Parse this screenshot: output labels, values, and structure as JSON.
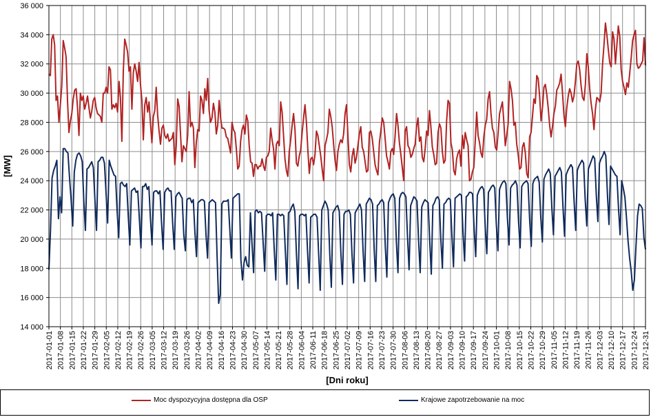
{
  "chart_data": {
    "type": "line",
    "xlabel": "[Dni roku]",
    "ylabel": "[MW]",
    "ylim": [
      14000,
      36000
    ],
    "y_ticks": [
      14000,
      16000,
      18000,
      20000,
      22000,
      24000,
      26000,
      28000,
      30000,
      32000,
      34000,
      36000
    ],
    "y_tick_labels": [
      "14 000",
      "16 000",
      "18 000",
      "20 000",
      "22 000",
      "24 000",
      "26 000",
      "28 000",
      "30 000",
      "32 000",
      "34 000",
      "36 000"
    ],
    "x_range": [
      "2017-01-01",
      "2017-12-31"
    ],
    "x_tick_labels": [
      "2017-01-01",
      "2017-01-08",
      "2017-01-15",
      "2017-01-22",
      "2017-01-29",
      "2017-02-05",
      "2017-02-12",
      "2017-02-19",
      "2017-02-26",
      "2017-03-05",
      "2017-03-12",
      "2017-03-19",
      "2017-03-26",
      "2017-04-02",
      "2017-04-09",
      "2017-04-16",
      "2017-04-23",
      "2017-04-30",
      "2017-05-07",
      "2017-05-14",
      "2017-05-21",
      "2017-05-28",
      "2017-06-04",
      "2017-06-11",
      "2017-06-18",
      "2017-06-25",
      "2017-07-02",
      "2017-07-09",
      "2017-07-16",
      "2017-07-23",
      "2017-07-30",
      "2017-08-06",
      "2017-08-13",
      "2017-08-20",
      "2017-08-27",
      "2017-09-03",
      "2017-09-10",
      "2017-09-17",
      "2017-09-24",
      "2017-10-01",
      "2017-10-08",
      "2017-10-15",
      "2017-10-22",
      "2017-10-29",
      "2017-11-05",
      "2017-11-12",
      "2017-11-19",
      "2017-11-26",
      "2017-12-03",
      "2017-12-10",
      "2017-12-17",
      "2017-12-24",
      "2017-12-31"
    ],
    "grid": true,
    "legend_position": "bottom",
    "series": [
      {
        "name": "Moc dyspozycyjna dostępna dla OSP",
        "color": "#b22222",
        "values": [
          31300,
          31200,
          33700,
          34000,
          33300,
          29500,
          29800,
          28000,
          29200,
          30500,
          33600,
          33100,
          32500,
          29500,
          27300,
          28100,
          28600,
          29600,
          30200,
          30300,
          29000,
          27100,
          30000,
          29500,
          29800,
          28900,
          29300,
          29800,
          29000,
          28300,
          28800,
          29500,
          29700,
          29000,
          28600,
          28500,
          28400,
          28000,
          30000,
          30000,
          30400,
          30000,
          31800,
          31600,
          28900,
          29200,
          29000,
          29300,
          28700,
          30800,
          29700,
          26700,
          31500,
          33700,
          33300,
          32800,
          31500,
          31800,
          28900,
          31400,
          32000,
          31500,
          30800,
          32100,
          30600,
          29500,
          26800,
          29200,
          29700,
          28700,
          29400,
          27900,
          26600,
          28400,
          28800,
          30400,
          28500,
          27400,
          26500,
          27600,
          27800,
          27100,
          26900,
          27200,
          26700,
          26800,
          26900,
          27300,
          25100,
          26400,
          29600,
          29100,
          27200,
          25300,
          26400,
          26200,
          26000,
          27100,
          30100,
          27700,
          28000,
          27600,
          24900,
          26600,
          27500,
          27400,
          29800,
          29500,
          28600,
          30300,
          29500,
          31000,
          28800,
          28000,
          28300,
          29300,
          28700,
          27200,
          27800,
          29500,
          28300,
          27600,
          27600,
          27500,
          27000,
          26900,
          26400,
          25900,
          28000,
          27500,
          27300,
          26200,
          24800,
          25000,
          26700,
          27500,
          27800,
          27200,
          28500,
          28100,
          26400,
          25300,
          25200,
          24300,
          25100,
          25100,
          24800,
          25000,
          25000,
          25500,
          25000,
          24700,
          25600,
          25700,
          26000,
          27600,
          26800,
          26200,
          24800,
          26500,
          26700,
          26400,
          29400,
          28700,
          27100,
          25500,
          24700,
          24300,
          26000,
          26800,
          27800,
          28600,
          27500,
          25200,
          25000,
          25700,
          26100,
          27300,
          28300,
          29200,
          28000,
          26100,
          24500,
          25500,
          25600,
          25100,
          25800,
          27400,
          27100,
          26400,
          25700,
          24800,
          24000,
          26400,
          26800,
          27300,
          28900,
          28400,
          27700,
          26500,
          25400,
          24700,
          26000,
          26500,
          26800,
          26600,
          27200,
          28600,
          29200,
          27100,
          25100,
          24600,
          25700,
          26200,
          25200,
          25600,
          26400,
          27200,
          27700,
          26300,
          26000,
          25300,
          24600,
          24700,
          27300,
          27400,
          26900,
          26000,
          25100,
          24700,
          24400,
          26600,
          27400,
          28300,
          28000,
          26900,
          25700,
          25300,
          24800,
          26000,
          26200,
          25800,
          27100,
          28600,
          27800,
          26600,
          25800,
          24900,
          24000,
          27400,
          27700,
          26400,
          26200,
          25600,
          25800,
          26200,
          26500,
          27700,
          28300,
          26700,
          27000,
          25600,
          25300,
          26200,
          27400,
          27100,
          28800,
          27700,
          26300,
          25800,
          25100,
          25200,
          27300,
          27900,
          27600,
          26000,
          25200,
          25400,
          28100,
          29500,
          29300,
          26600,
          26100,
          24700,
          24400,
          25500,
          25900,
          26100,
          25000,
          27100,
          26200,
          27300,
          26800,
          26400,
          24000,
          24100,
          24600,
          24900,
          26700,
          28700,
          27100,
          26600,
          25900,
          25600,
          27000,
          27800,
          28200,
          29600,
          30100,
          28600,
          27600,
          27300,
          26300,
          26100,
          27300,
          28600,
          29000,
          29400,
          28000,
          26400,
          27100,
          27900,
          30800,
          30300,
          29500,
          27800,
          28000,
          26500,
          25800,
          24800,
          24900,
          26300,
          26600,
          25900,
          24500,
          24200,
          27000,
          27300,
          28400,
          29600,
          29300,
          31200,
          31000,
          29800,
          28100,
          29000,
          30400,
          30600,
          29900,
          29000,
          27800,
          27000,
          27700,
          28600,
          29100,
          30200,
          30400,
          30700,
          31300,
          30000,
          28500,
          27700,
          29000,
          29800,
          30300,
          30000,
          29400,
          29800,
          30800,
          32000,
          32200,
          31600,
          30500,
          29700,
          29500,
          30600,
          32700,
          31800,
          30300,
          29300,
          28600,
          27500,
          28900,
          29700,
          29600,
          29400,
          30000,
          32000,
          33300,
          34800,
          34000,
          33000,
          32100,
          31800,
          34200,
          33700,
          32000,
          33300,
          34600,
          33900,
          31600,
          30800,
          30400,
          29900,
          30700,
          30400,
          31400,
          32400,
          33600,
          34000,
          34300,
          32000,
          31700,
          31800,
          32000,
          32200,
          33800,
          31900
        ]
      },
      {
        "name": "Krajowe zapotrzebowanie na moc",
        "color": "#0f2a5c",
        "values": [
          17900,
          20600,
          24200,
          24700,
          25000,
          25400,
          21400,
          22900,
          21800,
          26200,
          26200,
          26000,
          25900,
          24200,
          22700,
          20900,
          24600,
          25400,
          25800,
          25900,
          25700,
          25300,
          22600,
          20600,
          24800,
          24900,
          25100,
          25300,
          24900,
          22700,
          20600,
          25300,
          25400,
          25600,
          25600,
          25200,
          23200,
          21100,
          25400,
          25000,
          24700,
          24400,
          24300,
          21900,
          20100,
          23800,
          23900,
          23700,
          23600,
          23800,
          21600,
          19600,
          23300,
          23400,
          23500,
          23200,
          23300,
          21400,
          19400,
          23600,
          23600,
          23800,
          23400,
          23600,
          21400,
          19600,
          23200,
          23300,
          23300,
          23100,
          23300,
          21100,
          19300,
          23200,
          23400,
          23500,
          23300,
          23300,
          21100,
          19300,
          22900,
          23100,
          23200,
          23000,
          22800,
          20300,
          19200,
          22700,
          22800,
          22800,
          22500,
          22700,
          20500,
          18800,
          22500,
          22600,
          22700,
          22700,
          22600,
          20300,
          18700,
          22500,
          22600,
          22700,
          22600,
          22500,
          18800,
          15600,
          16200,
          22400,
          22600,
          22600,
          22600,
          22700,
          20700,
          18700,
          22800,
          22900,
          23000,
          23100,
          23100,
          18600,
          17200,
          18400,
          18800,
          18200,
          18100,
          21800,
          19700,
          17700,
          21900,
          22000,
          21800,
          21900,
          21800,
          19800,
          17800,
          21600,
          21700,
          21700,
          21600,
          21800,
          19300,
          17200,
          21700,
          21700,
          21600,
          21700,
          21600,
          19200,
          16900,
          21800,
          21900,
          22200,
          22400,
          21900,
          19000,
          16600,
          21600,
          21700,
          21700,
          21600,
          21700,
          19200,
          17000,
          21500,
          21600,
          21700,
          21700,
          21500,
          19000,
          16500,
          22000,
          22300,
          22600,
          22400,
          22000,
          19000,
          16700,
          21800,
          22000,
          22200,
          22300,
          21900,
          19100,
          16900,
          21700,
          21900,
          21900,
          22000,
          21700,
          19000,
          17000,
          21800,
          22000,
          22200,
          22400,
          22000,
          19200,
          17100,
          22400,
          22600,
          22800,
          22700,
          22400,
          19300,
          17100,
          22300,
          22400,
          22600,
          22700,
          22500,
          19500,
          17400,
          22500,
          22800,
          23000,
          23100,
          22800,
          19800,
          17700,
          22800,
          23100,
          23200,
          23100,
          22900,
          20200,
          17900,
          22300,
          22600,
          22900,
          22800,
          22600,
          19900,
          17700,
          22200,
          22500,
          22700,
          22600,
          22500,
          19900,
          17600,
          22300,
          22500,
          22800,
          22900,
          22700,
          20000,
          18000,
          22400,
          22500,
          22700,
          22800,
          22700,
          20200,
          18100,
          22800,
          22900,
          23000,
          23100,
          23000,
          20400,
          18500,
          22900,
          23000,
          23200,
          23200,
          23100,
          20700,
          18800,
          23000,
          23300,
          23500,
          23600,
          23400,
          20800,
          19000,
          23200,
          23400,
          23600,
          23700,
          23500,
          21000,
          19200,
          23400,
          23700,
          23900,
          24000,
          23800,
          21400,
          19600,
          23500,
          23700,
          23800,
          24000,
          23700,
          21200,
          19400,
          23600,
          23800,
          23900,
          24000,
          23800,
          21300,
          19500,
          23800,
          24100,
          24200,
          24300,
          23900,
          21500,
          19800,
          24100,
          24400,
          24600,
          24800,
          24500,
          22100,
          20300,
          24300,
          24500,
          24700,
          24900,
          24600,
          22200,
          20200,
          24400,
          24700,
          24900,
          25100,
          24900,
          22600,
          20600,
          24700,
          25000,
          25200,
          25400,
          25200,
          22700,
          20900,
          24800,
          25100,
          25400,
          25700,
          25500,
          23000,
          21200,
          25200,
          25500,
          25700,
          26000,
          25700,
          23100,
          21000,
          25000,
          24800,
          24600,
          24400,
          24300,
          22100,
          20300,
          24000,
          23500,
          22900,
          21500,
          19900,
          18700,
          17800,
          16500,
          17200,
          19500,
          21600,
          22400,
          22300,
          22100,
          20100,
          19300
        ]
      }
    ]
  }
}
